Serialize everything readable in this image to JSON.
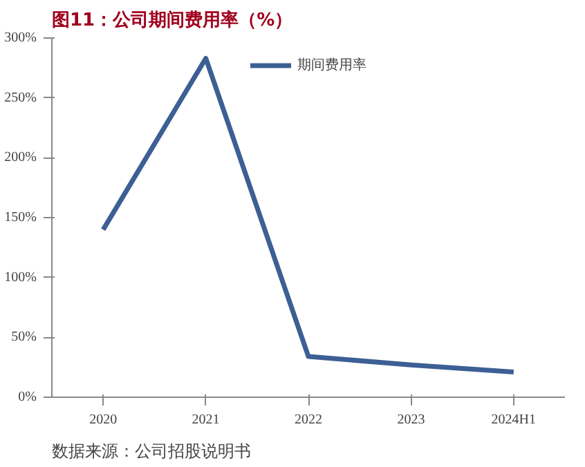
{
  "chart_data": {
    "type": "line",
    "title": "图11：公司期间费用率（%）",
    "categories": [
      "2020",
      "2021",
      "2022",
      "2023",
      "2024H1"
    ],
    "series": [
      {
        "name": "期间费用率",
        "color": "#3c5f94",
        "values": [
          140,
          283,
          34,
          27,
          21
        ]
      }
    ],
    "ylim": [
      0,
      300
    ],
    "yticks": [
      {
        "value": 0,
        "label": "0%"
      },
      {
        "value": 50,
        "label": "50%"
      },
      {
        "value": 100,
        "label": "100%"
      },
      {
        "value": 150,
        "label": "150%"
      },
      {
        "value": 200,
        "label": "200%"
      },
      {
        "value": 250,
        "label": "250%"
      },
      {
        "value": 300,
        "label": "300%"
      }
    ],
    "grid": false,
    "legend": "top",
    "marker": "none",
    "line_style": "solid",
    "annotations": [
      "数据来源：公司招股说明书"
    ]
  }
}
